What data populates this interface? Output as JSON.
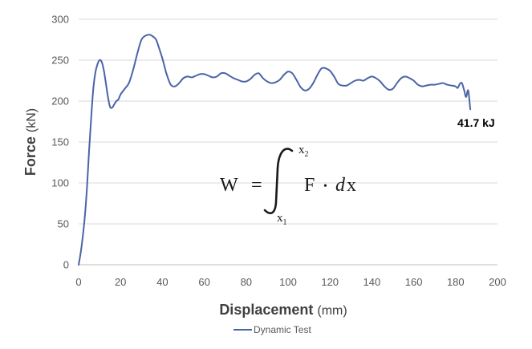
{
  "chart_data": {
    "type": "line",
    "title": "",
    "xlabel": "Displacement",
    "xlabel_unit": "(mm)",
    "ylabel": "Force",
    "ylabel_unit": "(kN)",
    "xlim": [
      0,
      200
    ],
    "ylim": [
      0,
      300
    ],
    "xticks": [
      0,
      20,
      40,
      60,
      80,
      100,
      120,
      140,
      160,
      180,
      200
    ],
    "yticks": [
      0,
      50,
      100,
      150,
      200,
      250,
      300
    ],
    "grid": "horizontal",
    "legend_position": "bottom",
    "series": [
      {
        "name": "Dynamic Test",
        "color": "#4a64a8",
        "x": [
          0,
          1,
          2,
          3,
          4,
          5,
          6,
          7,
          8,
          9,
          10,
          11,
          12,
          13,
          14,
          15,
          16,
          17,
          18,
          19,
          20,
          22,
          24,
          26,
          28,
          30,
          32,
          34,
          36,
          37,
          38,
          40,
          42,
          44,
          46,
          48,
          50,
          52,
          54,
          56,
          58,
          60,
          62,
          64,
          66,
          68,
          70,
          72,
          74,
          76,
          78,
          80,
          82,
          84,
          86,
          88,
          90,
          92,
          94,
          96,
          98,
          100,
          102,
          104,
          106,
          108,
          110,
          112,
          114,
          116,
          118,
          120,
          122,
          124,
          126,
          128,
          130,
          132,
          134,
          136,
          138,
          140,
          142,
          144,
          146,
          148,
          150,
          152,
          154,
          156,
          158,
          160,
          162,
          164,
          166,
          168,
          170,
          172,
          174,
          176,
          178,
          180,
          181,
          182,
          183,
          184,
          185,
          186,
          187
        ],
        "y": [
          0,
          15,
          35,
          60,
          95,
          140,
          180,
          215,
          235,
          245,
          250,
          248,
          238,
          222,
          205,
          193,
          192,
          196,
          200,
          202,
          208,
          215,
          222,
          238,
          258,
          275,
          280,
          281,
          278,
          275,
          268,
          252,
          233,
          220,
          218,
          222,
          228,
          230,
          229,
          231,
          233,
          233,
          231,
          229,
          230,
          234,
          234,
          231,
          228,
          226,
          224,
          224,
          227,
          232,
          234,
          228,
          224,
          222,
          223,
          226,
          232,
          236,
          234,
          226,
          217,
          213,
          215,
          222,
          232,
          240,
          240,
          237,
          230,
          221,
          219,
          219,
          222,
          225,
          226,
          225,
          228,
          230,
          228,
          224,
          218,
          214,
          215,
          222,
          228,
          230,
          228,
          225,
          220,
          218,
          219,
          220,
          220,
          221,
          222,
          220,
          219,
          218,
          216,
          221,
          222,
          214,
          205,
          213,
          190
        ]
      }
    ],
    "annotations": {
      "energy_label": "41.7 kJ",
      "equation": {
        "lhs": "W",
        "equals": "=",
        "upper_limit": "x",
        "upper_sub": "2",
        "lower_limit": "x",
        "lower_sub": "1",
        "integrand": "F",
        "dot": "•",
        "differential_d": "d",
        "differential_var": "x"
      }
    }
  }
}
